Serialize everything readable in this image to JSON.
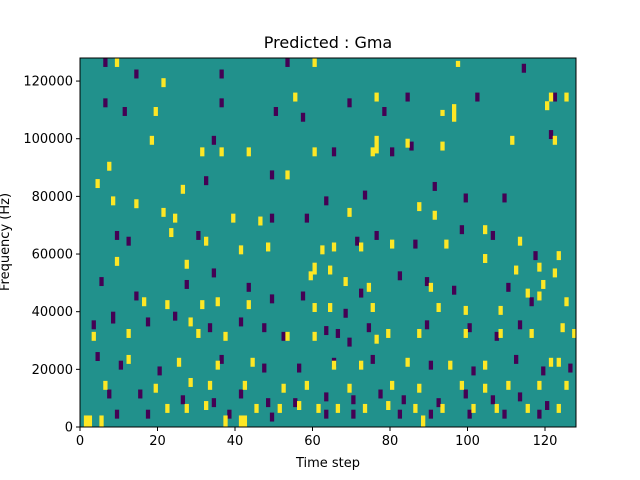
{
  "chart_data": {
    "type": "heatmap",
    "title": "Predicted : Gma",
    "xlabel": "Time step",
    "ylabel": "Frequency (Hz)",
    "xlim": [
      0,
      128
    ],
    "ylim": [
      0,
      128000
    ],
    "xticks": [
      0,
      20,
      40,
      60,
      80,
      100,
      120
    ],
    "yticks": [
      0,
      20000,
      40000,
      60000,
      80000,
      100000,
      120000
    ],
    "colormap": "viridis",
    "colors": {
      "background": "#21918c",
      "high": "#fde725",
      "low": "#440154"
    },
    "n_time": 128,
    "n_freq": 128,
    "bin_height_hz": 1000,
    "background_level": 0,
    "high_level": 1,
    "low_level": -1,
    "high_cells": [
      [
        1,
        0,
        4
      ],
      [
        2,
        0,
        4
      ],
      [
        5,
        0,
        4
      ],
      [
        37,
        0,
        4
      ],
      [
        41,
        0,
        4
      ],
      [
        42,
        0,
        4
      ],
      [
        88,
        0,
        4
      ],
      [
        9,
        125,
        3
      ],
      [
        60,
        125,
        3
      ],
      [
        97,
        125,
        2
      ],
      [
        21,
        118,
        3
      ],
      [
        55,
        113,
        3
      ],
      [
        76,
        113,
        3
      ],
      [
        121,
        113,
        3
      ],
      [
        125,
        113,
        3
      ],
      [
        19,
        108,
        3
      ],
      [
        93,
        108,
        2
      ],
      [
        96,
        106,
        6
      ],
      [
        120,
        110,
        3
      ],
      [
        18,
        98,
        3
      ],
      [
        36,
        94,
        3
      ],
      [
        43,
        94,
        3
      ],
      [
        75,
        94,
        3
      ],
      [
        60,
        94,
        3
      ],
      [
        84,
        97,
        3
      ],
      [
        76,
        95,
        6
      ],
      [
        93,
        96,
        3
      ],
      [
        111,
        98,
        3
      ],
      [
        122,
        98,
        3
      ],
      [
        7,
        89,
        3
      ],
      [
        4,
        83,
        3
      ],
      [
        26,
        81,
        3
      ],
      [
        31,
        94,
        3
      ],
      [
        53,
        86,
        3
      ],
      [
        8,
        77,
        3
      ],
      [
        14,
        76,
        3
      ],
      [
        21,
        73,
        3
      ],
      [
        24,
        71,
        3
      ],
      [
        39,
        71,
        3
      ],
      [
        46,
        70,
        3
      ],
      [
        69,
        73,
        3
      ],
      [
        87,
        75,
        3
      ],
      [
        91,
        72,
        3
      ],
      [
        104,
        67,
        3
      ],
      [
        23,
        66,
        3
      ],
      [
        32,
        63,
        3
      ],
      [
        41,
        60,
        3
      ],
      [
        48,
        61,
        3
      ],
      [
        62,
        60,
        3
      ],
      [
        65,
        61,
        3
      ],
      [
        72,
        61,
        3
      ],
      [
        80,
        62,
        3
      ],
      [
        94,
        62,
        3
      ],
      [
        113,
        63,
        3
      ],
      [
        59,
        51,
        3
      ],
      [
        60,
        53,
        4
      ],
      [
        9,
        56,
        3
      ],
      [
        27,
        55,
        3
      ],
      [
        64,
        53,
        3
      ],
      [
        68,
        49,
        3
      ],
      [
        74,
        47,
        3
      ],
      [
        90,
        47,
        3
      ],
      [
        104,
        57,
        3
      ],
      [
        112,
        53,
        3
      ],
      [
        123,
        58,
        3
      ],
      [
        122,
        52,
        3
      ],
      [
        118,
        54,
        3
      ],
      [
        119,
        48,
        3
      ],
      [
        16,
        42,
        3
      ],
      [
        22,
        41,
        3
      ],
      [
        31,
        41,
        3
      ],
      [
        35,
        42,
        3
      ],
      [
        43,
        41,
        3
      ],
      [
        60,
        40,
        3
      ],
      [
        64,
        40,
        3
      ],
      [
        75,
        40,
        3
      ],
      [
        92,
        40,
        3
      ],
      [
        99,
        39,
        3
      ],
      [
        108,
        39,
        3
      ],
      [
        115,
        45,
        3
      ],
      [
        118,
        44,
        3
      ],
      [
        125,
        42,
        3
      ],
      [
        3,
        30,
        3
      ],
      [
        12,
        31,
        3
      ],
      [
        28,
        35,
        3
      ],
      [
        30,
        31,
        3
      ],
      [
        37,
        30,
        3
      ],
      [
        53,
        30,
        3
      ],
      [
        60,
        30,
        3
      ],
      [
        76,
        29,
        3
      ],
      [
        79,
        31,
        3
      ],
      [
        87,
        31,
        3
      ],
      [
        99,
        31,
        3
      ],
      [
        108,
        31,
        3
      ],
      [
        116,
        31,
        3
      ],
      [
        124,
        33,
        3
      ],
      [
        127,
        31,
        3
      ],
      [
        12,
        22,
        3
      ],
      [
        25,
        21,
        3
      ],
      [
        35,
        20,
        3
      ],
      [
        44,
        21,
        3
      ],
      [
        65,
        20,
        3
      ],
      [
        72,
        20,
        3
      ],
      [
        84,
        21,
        3
      ],
      [
        95,
        20,
        3
      ],
      [
        104,
        20,
        3
      ],
      [
        121,
        21,
        3
      ],
      [
        123,
        21,
        3
      ],
      [
        6,
        13,
        3
      ],
      [
        19,
        12,
        3
      ],
      [
        28,
        14,
        3
      ],
      [
        33,
        13,
        3
      ],
      [
        42,
        13,
        3
      ],
      [
        52,
        12,
        3
      ],
      [
        58,
        13,
        3
      ],
      [
        69,
        12,
        3
      ],
      [
        80,
        13,
        3
      ],
      [
        87,
        12,
        3
      ],
      [
        98,
        13,
        3
      ],
      [
        104,
        12,
        3
      ],
      [
        110,
        13,
        3
      ],
      [
        118,
        13,
        3
      ],
      [
        125,
        13,
        3
      ],
      [
        22,
        5,
        3
      ],
      [
        27,
        5,
        3
      ],
      [
        32,
        6,
        3
      ],
      [
        45,
        5,
        3
      ],
      [
        51,
        5,
        3
      ],
      [
        56,
        6,
        3
      ],
      [
        61,
        5,
        3
      ],
      [
        66,
        5,
        3
      ],
      [
        73,
        5,
        3
      ],
      [
        79,
        6,
        3
      ],
      [
        86,
        5,
        3
      ],
      [
        93,
        5,
        3
      ],
      [
        101,
        5,
        3
      ],
      [
        107,
        5,
        3
      ],
      [
        115,
        5,
        3
      ],
      [
        123,
        5,
        3
      ]
    ],
    "low_cells": [
      [
        6,
        125,
        3
      ],
      [
        14,
        121,
        3
      ],
      [
        36,
        121,
        3
      ],
      [
        53,
        125,
        3
      ],
      [
        102,
        113,
        3
      ],
      [
        114,
        123,
        3
      ],
      [
        122,
        113,
        3
      ],
      [
        6,
        111,
        3
      ],
      [
        11,
        108,
        3
      ],
      [
        36,
        111,
        3
      ],
      [
        50,
        108,
        3
      ],
      [
        69,
        111,
        3
      ],
      [
        78,
        108,
        3
      ],
      [
        84,
        113,
        3
      ],
      [
        121,
        100,
        3
      ],
      [
        34,
        98,
        3
      ],
      [
        57,
        106,
        3
      ],
      [
        65,
        94,
        3
      ],
      [
        80,
        94,
        3
      ],
      [
        85,
        96,
        3
      ],
      [
        32,
        84,
        3
      ],
      [
        49,
        86,
        3
      ],
      [
        63,
        77,
        3
      ],
      [
        73,
        79,
        3
      ],
      [
        91,
        82,
        3
      ],
      [
        99,
        78,
        3
      ],
      [
        109,
        78,
        3
      ],
      [
        9,
        65,
        3
      ],
      [
        12,
        63,
        3
      ],
      [
        30,
        65,
        3
      ],
      [
        49,
        71,
        3
      ],
      [
        58,
        71,
        3
      ],
      [
        71,
        63,
        3
      ],
      [
        76,
        65,
        3
      ],
      [
        86,
        62,
        3
      ],
      [
        98,
        67,
        3
      ],
      [
        106,
        65,
        3
      ],
      [
        117,
        58,
        3
      ],
      [
        5,
        49,
        3
      ],
      [
        14,
        44,
        3
      ],
      [
        27,
        48,
        3
      ],
      [
        34,
        52,
        3
      ],
      [
        43,
        47,
        3
      ],
      [
        49,
        43,
        3
      ],
      [
        57,
        44,
        3
      ],
      [
        68,
        38,
        3
      ],
      [
        72,
        45,
        3
      ],
      [
        82,
        51,
        3
      ],
      [
        89,
        49,
        3
      ],
      [
        96,
        46,
        3
      ],
      [
        110,
        47,
        3
      ],
      [
        116,
        42,
        3
      ],
      [
        3,
        34,
        3
      ],
      [
        8,
        36,
        4
      ],
      [
        17,
        35,
        3
      ],
      [
        24,
        37,
        3
      ],
      [
        33,
        33,
        3
      ],
      [
        41,
        35,
        3
      ],
      [
        47,
        33,
        3
      ],
      [
        52,
        30,
        3
      ],
      [
        63,
        32,
        3
      ],
      [
        66,
        31,
        3
      ],
      [
        69,
        28,
        3
      ],
      [
        74,
        33,
        3
      ],
      [
        89,
        34,
        3
      ],
      [
        100,
        33,
        3
      ],
      [
        107,
        30,
        3
      ],
      [
        113,
        34,
        3
      ],
      [
        4,
        23,
        3
      ],
      [
        10,
        20,
        3
      ],
      [
        20,
        18,
        3
      ],
      [
        36,
        22,
        3
      ],
      [
        47,
        19,
        3
      ],
      [
        56,
        19,
        3
      ],
      [
        65,
        21,
        3
      ],
      [
        75,
        22,
        3
      ],
      [
        90,
        20,
        3
      ],
      [
        101,
        18,
        3
      ],
      [
        112,
        22,
        3
      ],
      [
        119,
        18,
        3
      ],
      [
        126,
        19,
        3
      ],
      [
        7,
        10,
        3
      ],
      [
        15,
        10,
        3
      ],
      [
        26,
        8,
        3
      ],
      [
        34,
        7,
        3
      ],
      [
        41,
        10,
        3
      ],
      [
        48,
        7,
        3
      ],
      [
        55,
        7,
        3
      ],
      [
        63,
        9,
        3
      ],
      [
        70,
        8,
        3
      ],
      [
        77,
        10,
        3
      ],
      [
        83,
        8,
        3
      ],
      [
        92,
        7,
        3
      ],
      [
        99,
        10,
        3
      ],
      [
        106,
        8,
        3
      ],
      [
        113,
        9,
        3
      ],
      [
        120,
        6,
        3
      ],
      [
        9,
        3,
        3
      ],
      [
        17,
        3,
        3
      ],
      [
        38,
        3,
        3
      ],
      [
        49,
        2,
        3
      ],
      [
        63,
        3,
        3
      ],
      [
        70,
        3,
        3
      ],
      [
        82,
        3,
        3
      ],
      [
        90,
        3,
        3
      ],
      [
        100,
        3,
        3
      ],
      [
        109,
        3,
        3
      ],
      [
        118,
        3,
        3
      ]
    ]
  }
}
